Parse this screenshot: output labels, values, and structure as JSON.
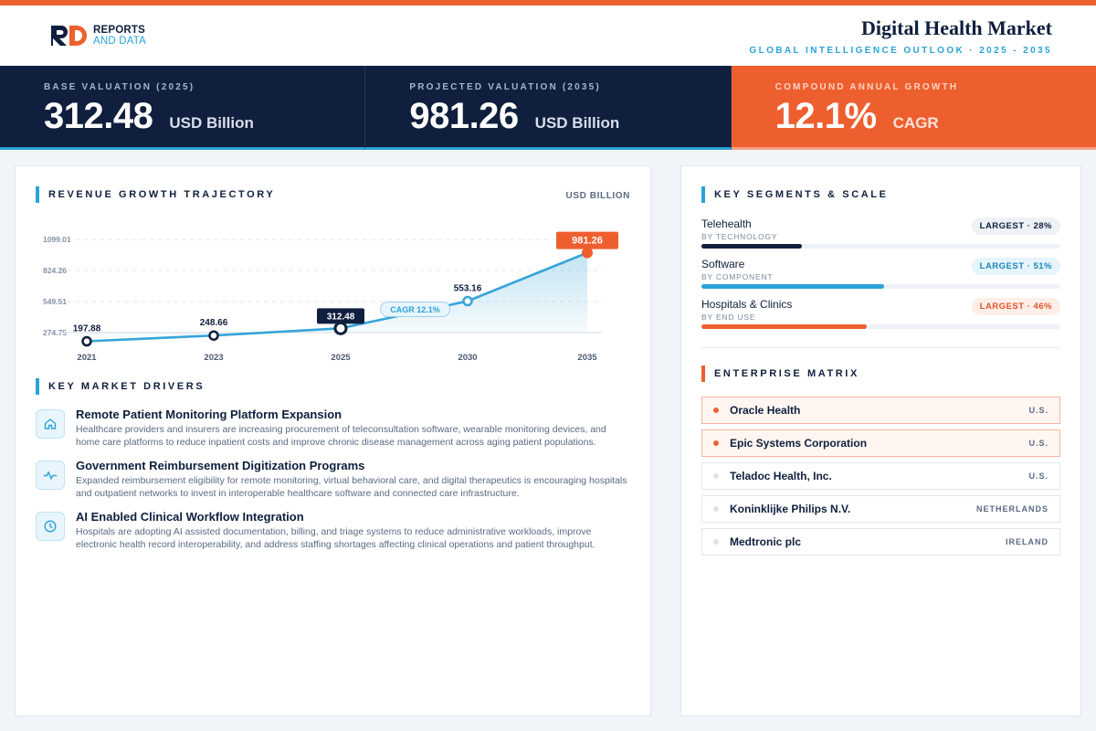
{
  "brand": {
    "line1": "REPORTS",
    "line2": "AND DATA"
  },
  "header": {
    "title": "Digital Health Market",
    "subtitle": "GLOBAL INTELLIGENCE OUTLOOK  ·  2025 - 2035"
  },
  "stats": [
    {
      "label": "BASE VALUATION (2025)",
      "value": "312.48",
      "unit": "USD Billion"
    },
    {
      "label": "PROJECTED VALUATION (2035)",
      "value": "981.26",
      "unit": "USD Billion"
    },
    {
      "label": "COMPOUND ANNUAL GROWTH",
      "value": "12.1%",
      "unit": "CAGR"
    }
  ],
  "revenue": {
    "title": "REVENUE GROWTH TRAJECTORY",
    "unit": "USD BILLION"
  },
  "chart_data": {
    "type": "area",
    "x": [
      "2021",
      "2023",
      "2025",
      "2030",
      "2035"
    ],
    "values": [
      197.88,
      248.66,
      312.48,
      553.16,
      981.26
    ],
    "value_labels": [
      "197.88",
      "248.66",
      "312.48",
      "553.16",
      "981.26"
    ],
    "y_ticks": [
      "1099.01",
      "824.26",
      "549.51",
      "274.75"
    ],
    "ylim": [
      274.75,
      1099.01
    ],
    "annotation": "CAGR 12.1%",
    "grid": true,
    "colors": {
      "line": "#36a4d8",
      "highlight_base": "#0f1f3d",
      "highlight_end": "#ee5f2f"
    }
  },
  "drivers": {
    "title": "KEY MARKET DRIVERS",
    "items": [
      {
        "icon": "home-icon",
        "title": "Remote Patient Monitoring Platform Expansion",
        "desc": "Healthcare providers and insurers are increasing procurement of teleconsultation software, wearable monitoring devices, and home care platforms to reduce inpatient costs and improve chronic disease management across aging patient populations."
      },
      {
        "icon": "pulse-icon",
        "title": "Government Reimbursement Digitization Programs",
        "desc": "Expanded reimbursement eligibility for remote monitoring, virtual behavioral care, and digital therapeutics is encouraging hospitals and outpatient networks to invest in interoperable healthcare software and connected care infrastructure."
      },
      {
        "icon": "clock-icon",
        "title": "AI Enabled Clinical Workflow Integration",
        "desc": "Hospitals are adopting AI assisted documentation, billing, and triage systems to reduce administrative workloads, improve electronic health record interoperability, and address staffing shortages affecting clinical operations and patient throughput."
      }
    ]
  },
  "segments": {
    "title": "KEY SEGMENTS & SCALE",
    "items": [
      {
        "name": "Telehealth",
        "sub": "BY TECHNOLOGY",
        "badge": "LARGEST · 28%",
        "share": 28,
        "color": "#0f1f3d",
        "badge_bg": "#eef1f5",
        "badge_fg": "#0f1f3d"
      },
      {
        "name": "Software",
        "sub": "BY COMPONENT",
        "badge": "LARGEST · 51%",
        "share": 51,
        "color": "#2aa3d9",
        "badge_bg": "#e6f4fb",
        "badge_fg": "#1b86b8"
      },
      {
        "name": "Hospitals & Clinics",
        "sub": "BY END USE",
        "badge": "LARGEST · 46%",
        "share": 46,
        "color": "#ee5f2f",
        "badge_bg": "#fdeee8",
        "badge_fg": "#e0542a"
      }
    ]
  },
  "matrix": {
    "title": "ENTERPRISE MATRIX",
    "items": [
      {
        "name": "Oracle Health",
        "country": "U.S.",
        "highlight": true
      },
      {
        "name": "Epic Systems Corporation",
        "country": "U.S.",
        "highlight": true
      },
      {
        "name": "Teladoc Health, Inc.",
        "country": "U.S.",
        "highlight": false
      },
      {
        "name": "Koninklijke Philips N.V.",
        "country": "NETHERLANDS",
        "highlight": false
      },
      {
        "name": "Medtronic plc",
        "country": "IRELAND",
        "highlight": false
      }
    ]
  }
}
